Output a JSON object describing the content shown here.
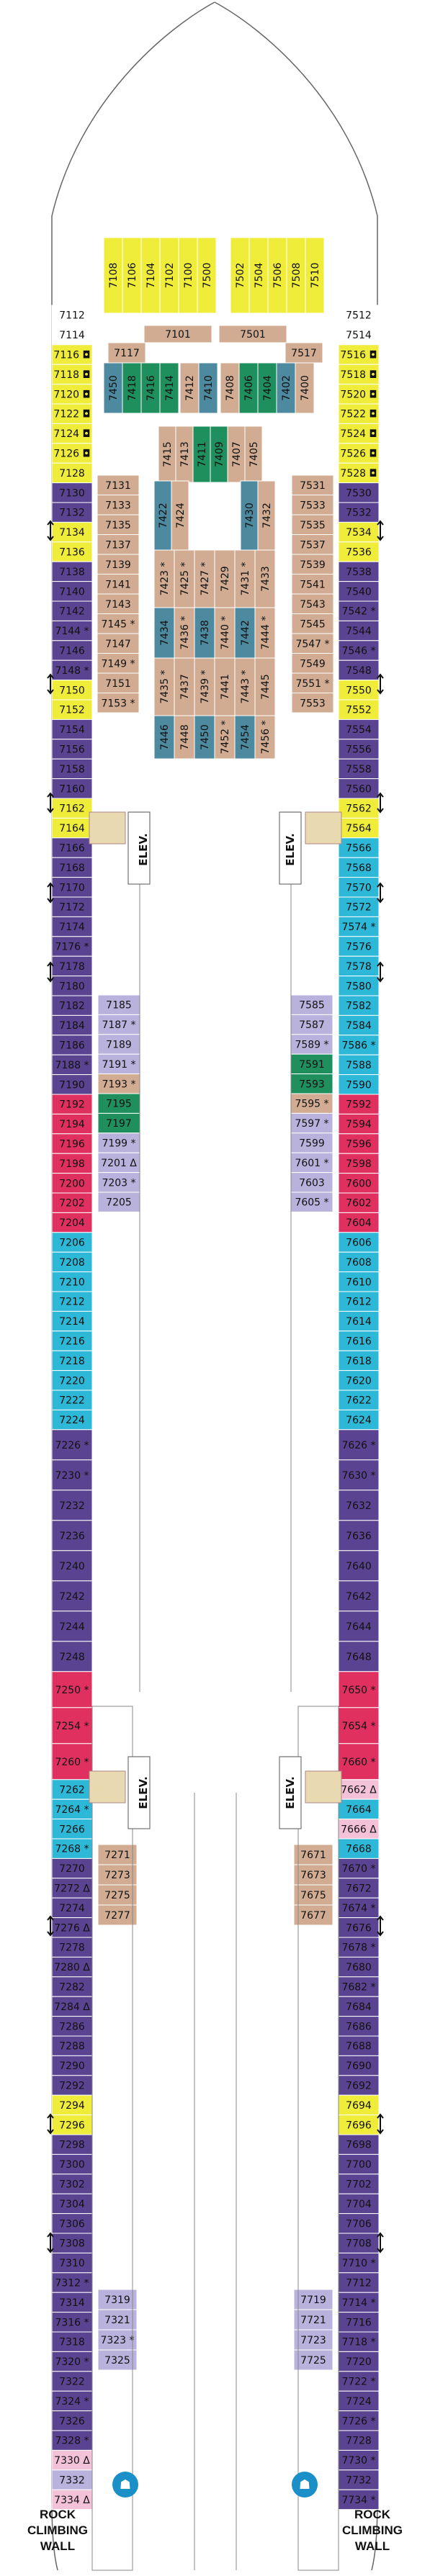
{
  "colors": {
    "purple": "#5a4390",
    "lavender": "#b8b2dc",
    "blue": "#2db8d8",
    "yellow": "#f0ec3a",
    "tan": "#d1ac92",
    "green": "#1f8f5e",
    "slate": "#4d8aa0",
    "red": "#e03060",
    "pink": "#f4c2d8",
    "lightblue": "#a8d8ec"
  },
  "rock_climbing_left": [
    "ROCK",
    "CLIMBING",
    "WALL"
  ],
  "rock_climbing_right": [
    "ROCK",
    "CLIMBING",
    "WALL"
  ],
  "elevator_labels": {
    "fwd_port": "ELEV.",
    "fwd_stbd": "ELEV.",
    "aft_port": "ELEV.",
    "aft_stbd": "ELEV."
  },
  "port_outer": [
    {
      "n": "7112",
      "c": "white"
    },
    {
      "n": "7114",
      "c": "white"
    },
    {
      "n": "7116",
      "c": "yellow",
      "mk": "q"
    },
    {
      "n": "7118",
      "c": "yellow",
      "mk": "q"
    },
    {
      "n": "7120",
      "c": "yellow",
      "mk": "q"
    },
    {
      "n": "7122",
      "c": "yellow",
      "mk": "q"
    },
    {
      "n": "7124",
      "c": "yellow",
      "mk": "q"
    },
    {
      "n": "7126",
      "c": "yellow",
      "mk": "q"
    },
    {
      "n": "7128",
      "c": "yellow"
    },
    {
      "n": "7130",
      "c": "purple"
    },
    {
      "n": "7132",
      "c": "purple"
    },
    {
      "n": "7134",
      "c": "yellow"
    },
    {
      "n": "7136",
      "c": "yellow"
    },
    {
      "n": "7138",
      "c": "purple"
    },
    {
      "n": "7140",
      "c": "purple"
    },
    {
      "n": "7142",
      "c": "purple"
    },
    {
      "n": "7144",
      "c": "purple",
      "mk": "*"
    },
    {
      "n": "7146",
      "c": "purple"
    },
    {
      "n": "7148",
      "c": "purple",
      "mk": "*"
    },
    {
      "n": "7150",
      "c": "yellow"
    },
    {
      "n": "7152",
      "c": "yellow"
    },
    {
      "n": "7154",
      "c": "purple"
    },
    {
      "n": "7156",
      "c": "purple"
    },
    {
      "n": "7158",
      "c": "purple"
    },
    {
      "n": "7160",
      "c": "purple"
    },
    {
      "n": "7162",
      "c": "yellow"
    },
    {
      "n": "7164",
      "c": "yellow"
    },
    {
      "n": "7166",
      "c": "purple"
    },
    {
      "n": "7168",
      "c": "purple"
    },
    {
      "n": "7170",
      "c": "purple"
    },
    {
      "n": "7172",
      "c": "purple"
    },
    {
      "n": "7174",
      "c": "purple"
    },
    {
      "n": "7176",
      "c": "purple",
      "mk": "*"
    },
    {
      "n": "7178",
      "c": "purple"
    },
    {
      "n": "7180",
      "c": "purple"
    },
    {
      "n": "7182",
      "c": "purple"
    },
    {
      "n": "7184",
      "c": "purple"
    },
    {
      "n": "7186",
      "c": "purple"
    },
    {
      "n": "7188",
      "c": "purple",
      "mk": "*"
    },
    {
      "n": "7190",
      "c": "purple"
    },
    {
      "n": "7192",
      "c": "red"
    },
    {
      "n": "7194",
      "c": "red"
    },
    {
      "n": "7196",
      "c": "red"
    },
    {
      "n": "7198",
      "c": "red"
    },
    {
      "n": "7200",
      "c": "red"
    },
    {
      "n": "7202",
      "c": "red"
    },
    {
      "n": "7204",
      "c": "red"
    },
    {
      "n": "7206",
      "c": "blue"
    },
    {
      "n": "7208",
      "c": "blue"
    },
    {
      "n": "7210",
      "c": "blue"
    },
    {
      "n": "7212",
      "c": "blue"
    },
    {
      "n": "7214",
      "c": "blue"
    },
    {
      "n": "7216",
      "c": "blue"
    },
    {
      "n": "7218",
      "c": "blue"
    },
    {
      "n": "7220",
      "c": "blue"
    },
    {
      "n": "7222",
      "c": "blue"
    },
    {
      "n": "7224",
      "c": "blue"
    },
    {
      "n": "7226",
      "c": "purple",
      "mk": "*",
      "h": 42
    },
    {
      "n": "7230",
      "c": "purple",
      "mk": "*",
      "h": 42
    },
    {
      "n": "7232",
      "c": "purple",
      "h": 42
    },
    {
      "n": "7236",
      "c": "purple",
      "h": 42
    },
    {
      "n": "7240",
      "c": "purple",
      "h": 42
    },
    {
      "n": "7242",
      "c": "purple",
      "h": 42
    },
    {
      "n": "7244",
      "c": "purple",
      "h": 42
    },
    {
      "n": "7248",
      "c": "purple",
      "h": 42
    },
    {
      "n": "7250",
      "c": "red",
      "mk": "*",
      "h": 50
    },
    {
      "n": "7254",
      "c": "red",
      "mk": "*",
      "h": 50
    },
    {
      "n": "7260",
      "c": "red",
      "mk": "*",
      "h": 50
    },
    {
      "n": "7262",
      "c": "blue"
    },
    {
      "n": "7264",
      "c": "blue",
      "mk": "*"
    },
    {
      "n": "7266",
      "c": "blue"
    },
    {
      "n": "7268",
      "c": "blue",
      "mk": "*"
    },
    {
      "n": "7270",
      "c": "purple"
    },
    {
      "n": "7272",
      "c": "purple",
      "mk": "Δ"
    },
    {
      "n": "7274",
      "c": "purple"
    },
    {
      "n": "7276",
      "c": "purple",
      "mk": "Δ"
    },
    {
      "n": "7278",
      "c": "purple"
    },
    {
      "n": "7280",
      "c": "purple",
      "mk": "Δ"
    },
    {
      "n": "7282",
      "c": "purple"
    },
    {
      "n": "7284",
      "c": "purple",
      "mk": "Δ"
    },
    {
      "n": "7286",
      "c": "purple"
    },
    {
      "n": "7288",
      "c": "purple"
    },
    {
      "n": "7290",
      "c": "purple"
    },
    {
      "n": "7292",
      "c": "purple"
    },
    {
      "n": "7294",
      "c": "yellow"
    },
    {
      "n": "7296",
      "c": "yellow"
    },
    {
      "n": "7298",
      "c": "purple"
    },
    {
      "n": "7300",
      "c": "purple"
    },
    {
      "n": "7302",
      "c": "purple"
    },
    {
      "n": "7304",
      "c": "purple"
    },
    {
      "n": "7306",
      "c": "purple"
    },
    {
      "n": "7308",
      "c": "purple"
    },
    {
      "n": "7310",
      "c": "purple"
    },
    {
      "n": "7312",
      "c": "purple",
      "mk": "*"
    },
    {
      "n": "7314",
      "c": "purple"
    },
    {
      "n": "7316",
      "c": "purple",
      "mk": "*"
    },
    {
      "n": "7318",
      "c": "purple"
    },
    {
      "n": "7320",
      "c": "purple",
      "mk": "*"
    },
    {
      "n": "7322",
      "c": "purple"
    },
    {
      "n": "7324",
      "c": "purple",
      "mk": "*"
    },
    {
      "n": "7326",
      "c": "purple"
    },
    {
      "n": "7328",
      "c": "purple",
      "mk": "*"
    },
    {
      "n": "7330",
      "c": "pink",
      "mk": "Δ"
    },
    {
      "n": "7332",
      "c": "lavender"
    },
    {
      "n": "7334",
      "c": "pink",
      "mk": "Δ"
    }
  ],
  "stbd_outer": [
    {
      "n": "7512",
      "c": "white"
    },
    {
      "n": "7514",
      "c": "white"
    },
    {
      "n": "7516",
      "c": "yellow",
      "mk": "q"
    },
    {
      "n": "7518",
      "c": "yellow",
      "mk": "q"
    },
    {
      "n": "7520",
      "c": "yellow",
      "mk": "q"
    },
    {
      "n": "7522",
      "c": "yellow",
      "mk": "q"
    },
    {
      "n": "7524",
      "c": "yellow",
      "mk": "q"
    },
    {
      "n": "7526",
      "c": "yellow",
      "mk": "q"
    },
    {
      "n": "7528",
      "c": "yellow",
      "mk": "q"
    },
    {
      "n": "7530",
      "c": "purple"
    },
    {
      "n": "7532",
      "c": "purple"
    },
    {
      "n": "7534",
      "c": "yellow"
    },
    {
      "n": "7536",
      "c": "yellow"
    },
    {
      "n": "7538",
      "c": "purple"
    },
    {
      "n": "7540",
      "c": "purple"
    },
    {
      "n": "7542",
      "c": "purple",
      "mk": "*"
    },
    {
      "n": "7544",
      "c": "purple"
    },
    {
      "n": "7546",
      "c": "purple",
      "mk": "*"
    },
    {
      "n": "7548",
      "c": "purple"
    },
    {
      "n": "7550",
      "c": "yellow"
    },
    {
      "n": "7552",
      "c": "yellow"
    },
    {
      "n": "7554",
      "c": "purple"
    },
    {
      "n": "7556",
      "c": "purple"
    },
    {
      "n": "7558",
      "c": "purple"
    },
    {
      "n": "7560",
      "c": "purple"
    },
    {
      "n": "7562",
      "c": "yellow"
    },
    {
      "n": "7564",
      "c": "yellow"
    },
    {
      "n": "7566",
      "c": "blue"
    },
    {
      "n": "7568",
      "c": "blue"
    },
    {
      "n": "7570",
      "c": "blue"
    },
    {
      "n": "7572",
      "c": "blue"
    },
    {
      "n": "7574",
      "c": "blue",
      "mk": "*"
    },
    {
      "n": "7576",
      "c": "blue"
    },
    {
      "n": "7578",
      "c": "blue"
    },
    {
      "n": "7580",
      "c": "blue"
    },
    {
      "n": "7582",
      "c": "blue"
    },
    {
      "n": "7584",
      "c": "blue"
    },
    {
      "n": "7586",
      "c": "blue",
      "mk": "*"
    },
    {
      "n": "7588",
      "c": "blue"
    },
    {
      "n": "7590",
      "c": "blue"
    },
    {
      "n": "7592",
      "c": "red"
    },
    {
      "n": "7594",
      "c": "red"
    },
    {
      "n": "7596",
      "c": "red"
    },
    {
      "n": "7598",
      "c": "red"
    },
    {
      "n": "7600",
      "c": "red"
    },
    {
      "n": "7602",
      "c": "red"
    },
    {
      "n": "7604",
      "c": "red"
    },
    {
      "n": "7606",
      "c": "blue"
    },
    {
      "n": "7608",
      "c": "blue"
    },
    {
      "n": "7610",
      "c": "blue"
    },
    {
      "n": "7612",
      "c": "blue"
    },
    {
      "n": "7614",
      "c": "blue"
    },
    {
      "n": "7616",
      "c": "blue"
    },
    {
      "n": "7618",
      "c": "blue"
    },
    {
      "n": "7620",
      "c": "blue"
    },
    {
      "n": "7622",
      "c": "blue"
    },
    {
      "n": "7624",
      "c": "blue"
    },
    {
      "n": "7626",
      "c": "purple",
      "mk": "*",
      "h": 42
    },
    {
      "n": "7630",
      "c": "purple",
      "mk": "*",
      "h": 42
    },
    {
      "n": "7632",
      "c": "purple",
      "h": 42
    },
    {
      "n": "7636",
      "c": "purple",
      "h": 42
    },
    {
      "n": "7640",
      "c": "purple",
      "h": 42
    },
    {
      "n": "7642",
      "c": "purple",
      "h": 42
    },
    {
      "n": "7644",
      "c": "purple",
      "h": 42
    },
    {
      "n": "7648",
      "c": "purple",
      "h": 42
    },
    {
      "n": "7650",
      "c": "red",
      "mk": "*",
      "h": 50
    },
    {
      "n": "7654",
      "c": "red",
      "mk": "*",
      "h": 50
    },
    {
      "n": "7660",
      "c": "red",
      "mk": "*",
      "h": 50
    },
    {
      "n": "7662",
      "c": "pink",
      "mk": "Δ"
    },
    {
      "n": "7664",
      "c": "blue"
    },
    {
      "n": "7666",
      "c": "pink",
      "mk": "Δ"
    },
    {
      "n": "7668",
      "c": "blue"
    },
    {
      "n": "7670",
      "c": "purple",
      "mk": "*"
    },
    {
      "n": "7672",
      "c": "purple"
    },
    {
      "n": "7674",
      "c": "purple",
      "mk": "*"
    },
    {
      "n": "7676",
      "c": "purple"
    },
    {
      "n": "7678",
      "c": "purple",
      "mk": "*"
    },
    {
      "n": "7680",
      "c": "purple"
    },
    {
      "n": "7682",
      "c": "purple",
      "mk": "*"
    },
    {
      "n": "7684",
      "c": "purple"
    },
    {
      "n": "7686",
      "c": "purple"
    },
    {
      "n": "7688",
      "c": "purple"
    },
    {
      "n": "7690",
      "c": "purple"
    },
    {
      "n": "7692",
      "c": "purple"
    },
    {
      "n": "7694",
      "c": "yellow"
    },
    {
      "n": "7696",
      "c": "yellow"
    },
    {
      "n": "7698",
      "c": "purple"
    },
    {
      "n": "7700",
      "c": "purple"
    },
    {
      "n": "7702",
      "c": "purple"
    },
    {
      "n": "7704",
      "c": "purple"
    },
    {
      "n": "7706",
      "c": "purple"
    },
    {
      "n": "7708",
      "c": "purple"
    },
    {
      "n": "7710",
      "c": "purple",
      "mk": "*"
    },
    {
      "n": "7712",
      "c": "purple"
    },
    {
      "n": "7714",
      "c": "purple",
      "mk": "*"
    },
    {
      "n": "7716",
      "c": "purple"
    },
    {
      "n": "7718",
      "c": "purple",
      "mk": "*"
    },
    {
      "n": "7720",
      "c": "purple"
    },
    {
      "n": "7722",
      "c": "purple",
      "mk": "*"
    },
    {
      "n": "7724",
      "c": "purple"
    },
    {
      "n": "7726",
      "c": "purple",
      "mk": "*"
    },
    {
      "n": "7728",
      "c": "purple"
    },
    {
      "n": "7730",
      "c": "purple",
      "mk": "*"
    },
    {
      "n": "7732",
      "c": "purple"
    },
    {
      "n": "7734",
      "c": "purple",
      "mk": "*"
    }
  ],
  "bow_top": [
    {
      "n": "7108",
      "c": "yellow"
    },
    {
      "n": "7106",
      "c": "yellow"
    },
    {
      "n": "7104",
      "c": "yellow"
    },
    {
      "n": "7102",
      "c": "yellow"
    },
    {
      "n": "7100",
      "c": "yellow"
    },
    {
      "n": "7500",
      "c": "yellow"
    },
    {
      "n": "7502",
      "c": "yellow"
    },
    {
      "n": "7504",
      "c": "yellow"
    },
    {
      "n": "7506",
      "c": "yellow"
    },
    {
      "n": "7508",
      "c": "yellow"
    },
    {
      "n": "7510",
      "c": "yellow"
    }
  ],
  "bow_header": [
    {
      "n": "7101"
    },
    {
      "n": "7501"
    }
  ],
  "fwd_tan_top": [
    {
      "n": "7117"
    },
    {
      "n": "7517"
    }
  ],
  "fwd_vertical": [
    {
      "n": "7450",
      "c": "slate"
    },
    {
      "n": "7418",
      "c": "green"
    },
    {
      "n": "7416",
      "c": "green"
    },
    {
      "n": "7414",
      "c": "green"
    },
    {
      "n": "7412",
      "c": "tan"
    },
    {
      "n": "7410",
      "c": "slate"
    },
    {
      "n": "7408",
      "c": "tan"
    },
    {
      "n": "7406",
      "c": "green"
    },
    {
      "n": "7404",
      "c": "green"
    },
    {
      "n": "7402",
      "c": "slate"
    },
    {
      "n": "7400",
      "c": "tan"
    }
  ],
  "port_inner_fwd": [
    {
      "n": "7131"
    },
    {
      "n": "7133"
    },
    {
      "n": "7135"
    },
    {
      "n": "7137"
    },
    {
      "n": "7139"
    },
    {
      "n": "7141"
    },
    {
      "n": "7143"
    },
    {
      "n": "7145",
      "mk": "*"
    },
    {
      "n": "7147"
    },
    {
      "n": "7149",
      "mk": "*"
    },
    {
      "n": "7151"
    },
    {
      "n": "7153",
      "mk": "*"
    }
  ],
  "stbd_inner_fwd": [
    {
      "n": "7531"
    },
    {
      "n": "7533"
    },
    {
      "n": "7535"
    },
    {
      "n": "7537"
    },
    {
      "n": "7539"
    },
    {
      "n": "7541"
    },
    {
      "n": "7543"
    },
    {
      "n": "7545"
    },
    {
      "n": "7547",
      "mk": "*"
    },
    {
      "n": "7549"
    },
    {
      "n": "7551",
      "mk": "*"
    },
    {
      "n": "7553"
    }
  ],
  "center_block_a": [
    {
      "n": "7415",
      "c": "tan"
    },
    {
      "n": "7413",
      "c": "tan"
    },
    {
      "n": "7411",
      "c": "green"
    },
    {
      "n": "7409",
      "c": "green"
    },
    {
      "n": "7407",
      "c": "tan"
    },
    {
      "n": "7405",
      "c": "tan"
    }
  ],
  "center_block_b": [
    {
      "n": "7422",
      "c": "slate"
    },
    {
      "n": "7424",
      "c": "tan"
    },
    {
      "n": "7430",
      "c": "slate"
    },
    {
      "n": "7432",
      "c": "tan"
    }
  ],
  "center_block_c": [
    {
      "n": "7423",
      "c": "tan",
      "mk": "*"
    },
    {
      "n": "7425",
      "c": "tan",
      "mk": "*"
    },
    {
      "n": "7427",
      "c": "tan",
      "mk": "*"
    },
    {
      "n": "7429",
      "c": "tan"
    },
    {
      "n": "7431",
      "c": "tan",
      "mk": "*"
    },
    {
      "n": "7433",
      "c": "tan"
    }
  ],
  "center_block_d": [
    {
      "n": "7434",
      "c": "slate"
    },
    {
      "n": "7436",
      "c": "tan",
      "mk": "*"
    },
    {
      "n": "7438",
      "c": "slate"
    },
    {
      "n": "7440",
      "c": "tan",
      "mk": "*"
    },
    {
      "n": "7442",
      "c": "slate"
    },
    {
      "n": "7444",
      "c": "tan",
      "mk": "*"
    }
  ],
  "center_block_e": [
    {
      "n": "7435",
      "c": "tan",
      "mk": "*"
    },
    {
      "n": "7437",
      "c": "tan"
    },
    {
      "n": "7439",
      "c": "tan",
      "mk": "*"
    },
    {
      "n": "7441",
      "c": "tan"
    },
    {
      "n": "7443",
      "c": "tan",
      "mk": "*"
    },
    {
      "n": "7445",
      "c": "tan"
    }
  ],
  "center_block_f": [
    {
      "n": "7446",
      "c": "slate"
    },
    {
      "n": "7448",
      "c": "tan"
    },
    {
      "n": "7450",
      "c": "slate"
    },
    {
      "n": "7452",
      "c": "tan",
      "mk": "*"
    },
    {
      "n": "7454",
      "c": "slate"
    },
    {
      "n": "7456",
      "c": "tan",
      "mk": "*"
    }
  ],
  "port_mid": [
    {
      "n": "7185",
      "c": "lavender"
    },
    {
      "n": "7187",
      "c": "lavender",
      "mk": "*"
    },
    {
      "n": "7189",
      "c": "lavender"
    },
    {
      "n": "7191",
      "c": "lavender",
      "mk": "*"
    },
    {
      "n": "7193",
      "c": "tan",
      "mk": "*"
    },
    {
      "n": "7195",
      "c": "green"
    },
    {
      "n": "7197",
      "c": "green"
    },
    {
      "n": "7199",
      "c": "lavender",
      "mk": "*"
    },
    {
      "n": "7201",
      "c": "lavender",
      "mk": "Δ"
    },
    {
      "n": "7203",
      "c": "lavender",
      "mk": "*"
    },
    {
      "n": "7205",
      "c": "lavender"
    }
  ],
  "stbd_mid": [
    {
      "n": "7585",
      "c": "lavender"
    },
    {
      "n": "7587",
      "c": "lavender"
    },
    {
      "n": "7589",
      "c": "lavender",
      "mk": "*"
    },
    {
      "n": "7591",
      "c": "green"
    },
    {
      "n": "7593",
      "c": "green"
    },
    {
      "n": "7595",
      "c": "tan",
      "mk": "*"
    },
    {
      "n": "7597",
      "c": "lavender",
      "mk": "*"
    },
    {
      "n": "7599",
      "c": "lavender"
    },
    {
      "n": "7601",
      "c": "lavender",
      "mk": "*"
    },
    {
      "n": "7603",
      "c": "lavender"
    },
    {
      "n": "7605",
      "c": "lavender",
      "mk": "*"
    }
  ],
  "port_aft_tan": [
    {
      "n": "7271"
    },
    {
      "n": "7273"
    },
    {
      "n": "7275"
    },
    {
      "n": "7277"
    }
  ],
  "stbd_aft_tan": [
    {
      "n": "7671"
    },
    {
      "n": "7673"
    },
    {
      "n": "7675"
    },
    {
      "n": "7677"
    }
  ],
  "port_aft_lav": [
    {
      "n": "7319"
    },
    {
      "n": "7321"
    },
    {
      "n": "7323",
      "mk": "*"
    },
    {
      "n": "7325"
    }
  ],
  "stbd_aft_lav": [
    {
      "n": "7719"
    },
    {
      "n": "7721"
    },
    {
      "n": "7723"
    },
    {
      "n": "7725"
    }
  ]
}
